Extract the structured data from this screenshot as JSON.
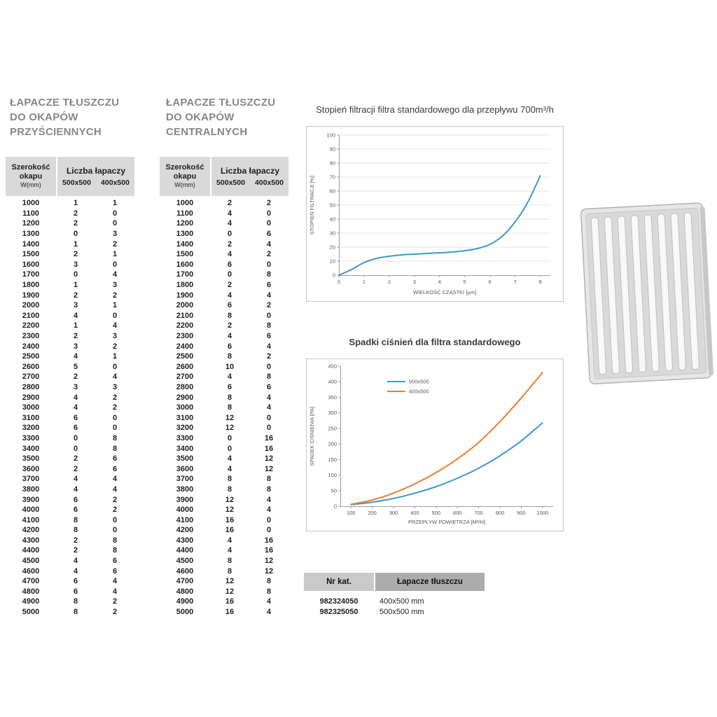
{
  "tables": [
    {
      "title_lines": [
        "ŁAPACZE TŁUSZCZU",
        "DO OKAPÓW",
        "PRZYŚCIENNYCH"
      ],
      "header": {
        "col1_l1": "Szerokość",
        "col1_l2": "okapu",
        "col1_l3": "W(mm)",
        "group": "Liczba łapaczy",
        "sub1": "500x500",
        "sub2": "400x500"
      },
      "rows": [
        [
          1000,
          1,
          1
        ],
        [
          1100,
          2,
          0
        ],
        [
          1200,
          2,
          0
        ],
        [
          1300,
          0,
          3
        ],
        [
          1400,
          1,
          2
        ],
        [
          1500,
          2,
          1
        ],
        [
          1600,
          3,
          0
        ],
        [
          1700,
          0,
          4
        ],
        [
          1800,
          1,
          3
        ],
        [
          1900,
          2,
          2
        ],
        [
          2000,
          3,
          1
        ],
        [
          2100,
          4,
          0
        ],
        [
          2200,
          1,
          4
        ],
        [
          2300,
          2,
          3
        ],
        [
          2400,
          3,
          2
        ],
        [
          2500,
          4,
          1
        ],
        [
          2600,
          5,
          0
        ],
        [
          2700,
          2,
          4
        ],
        [
          2800,
          3,
          3
        ],
        [
          2900,
          4,
          2
        ],
        [
          3000,
          4,
          2
        ],
        [
          3100,
          6,
          0
        ],
        [
          3200,
          6,
          0
        ],
        [
          3300,
          0,
          8
        ],
        [
          3400,
          0,
          8
        ],
        [
          3500,
          2,
          6
        ],
        [
          3600,
          2,
          6
        ],
        [
          3700,
          4,
          4
        ],
        [
          3800,
          4,
          4
        ],
        [
          3900,
          6,
          2
        ],
        [
          4000,
          6,
          2
        ],
        [
          4100,
          8,
          0
        ],
        [
          4200,
          8,
          0
        ],
        [
          4300,
          2,
          8
        ],
        [
          4400,
          2,
          8
        ],
        [
          4500,
          4,
          6
        ],
        [
          4600,
          4,
          6
        ],
        [
          4700,
          6,
          4
        ],
        [
          4800,
          6,
          4
        ],
        [
          4900,
          8,
          2
        ],
        [
          5000,
          8,
          2
        ]
      ]
    },
    {
      "title_lines": [
        "ŁAPACZE TŁUSZCZU",
        "DO OKAPÓW",
        "CENTRALNYCH"
      ],
      "header": {
        "col1_l1": "Szerokość",
        "col1_l2": "okapu",
        "col1_l3": "W(mm)",
        "group": "Liczba łapaczy",
        "sub1": "500x500",
        "sub2": "400x500"
      },
      "rows": [
        [
          1000,
          2,
          2
        ],
        [
          1100,
          4,
          0
        ],
        [
          1200,
          4,
          0
        ],
        [
          1300,
          0,
          6
        ],
        [
          1400,
          2,
          4
        ],
        [
          1500,
          4,
          2
        ],
        [
          1600,
          6,
          0
        ],
        [
          1700,
          0,
          8
        ],
        [
          1800,
          2,
          6
        ],
        [
          1900,
          4,
          4
        ],
        [
          2000,
          6,
          2
        ],
        [
          2100,
          8,
          0
        ],
        [
          2200,
          2,
          8
        ],
        [
          2300,
          4,
          6
        ],
        [
          2400,
          6,
          4
        ],
        [
          2500,
          8,
          2
        ],
        [
          2600,
          10,
          0
        ],
        [
          2700,
          4,
          8
        ],
        [
          2800,
          6,
          6
        ],
        [
          2900,
          8,
          4
        ],
        [
          3000,
          8,
          4
        ],
        [
          3100,
          12,
          0
        ],
        [
          3200,
          12,
          0
        ],
        [
          3300,
          0,
          16
        ],
        [
          3400,
          0,
          16
        ],
        [
          3500,
          4,
          12
        ],
        [
          3600,
          4,
          12
        ],
        [
          3700,
          8,
          8
        ],
        [
          3800,
          8,
          8
        ],
        [
          3900,
          12,
          4
        ],
        [
          4000,
          12,
          4
        ],
        [
          4100,
          16,
          0
        ],
        [
          4200,
          16,
          0
        ],
        [
          4300,
          4,
          16
        ],
        [
          4400,
          4,
          16
        ],
        [
          4500,
          8,
          12
        ],
        [
          4600,
          8,
          12
        ],
        [
          4700,
          12,
          8
        ],
        [
          4800,
          12,
          8
        ],
        [
          4900,
          16,
          4
        ],
        [
          5000,
          16,
          4
        ]
      ]
    }
  ],
  "chart_data": [
    {
      "type": "line",
      "title": "Stopień filtracji filtra standardowego dla przepływu 700m³/h",
      "xlabel": "WIELKOŚĆ CZĄSTKI [µm]",
      "ylabel": "STOPIEŃ FILTRACJI [%]",
      "xlim": [
        0,
        8.4
      ],
      "ylim": [
        0,
        100
      ],
      "xticks": [
        0,
        1,
        2,
        3,
        4,
        5,
        6,
        7,
        8
      ],
      "yticks": [
        0,
        10,
        20,
        30,
        40,
        50,
        60,
        70,
        80,
        90,
        100
      ],
      "grid": "horizontal",
      "legend_position": "none",
      "series": [
        {
          "name": "stopień filtracji",
          "color": "#4197c9",
          "x": [
            0,
            0.5,
            1,
            1.5,
            2,
            2.5,
            3,
            3.5,
            4,
            4.5,
            5,
            5.5,
            6,
            6.5,
            7,
            7.5,
            8
          ],
          "values": [
            0,
            4,
            9,
            12,
            13.5,
            14.5,
            15,
            15.5,
            16,
            16.5,
            17.5,
            19,
            22,
            28,
            38,
            52,
            71
          ]
        }
      ]
    },
    {
      "type": "line",
      "title": "Spadki ciśnień dla filtra standardowego",
      "xlabel": "PRZEPŁYW POWIETRZA [M³/H]",
      "ylabel": "SPADEK CIŚNIENIA [PA]",
      "xlim": [
        50,
        1050
      ],
      "ylim": [
        0,
        450
      ],
      "xticks": [
        100,
        200,
        300,
        400,
        500,
        600,
        700,
        800,
        900,
        1000
      ],
      "yticks": [
        0,
        50,
        100,
        150,
        200,
        250,
        300,
        350,
        400,
        450
      ],
      "grid": "none",
      "legend_position": "top",
      "series": [
        {
          "name": "500x500",
          "color": "#4197c9",
          "x": [
            100,
            200,
            300,
            400,
            500,
            600,
            700,
            800,
            900,
            1000
          ],
          "values": [
            5,
            13,
            25,
            42,
            63,
            90,
            122,
            162,
            210,
            268
          ]
        },
        {
          "name": "400x500",
          "color": "#ec7d2d",
          "x": [
            100,
            200,
            300,
            400,
            500,
            600,
            700,
            800,
            900,
            1000
          ],
          "values": [
            6,
            20,
            42,
            72,
            108,
            152,
            205,
            272,
            348,
            430
          ]
        }
      ]
    }
  ],
  "catalog": {
    "headers": [
      "Nr kat.",
      "Łapacze tłuszczu"
    ],
    "rows": [
      [
        "982324050",
        "400x500 mm"
      ],
      [
        "982325050",
        "500x500 mm"
      ]
    ]
  },
  "illustration": {
    "name": "grease-filter-baffle"
  }
}
